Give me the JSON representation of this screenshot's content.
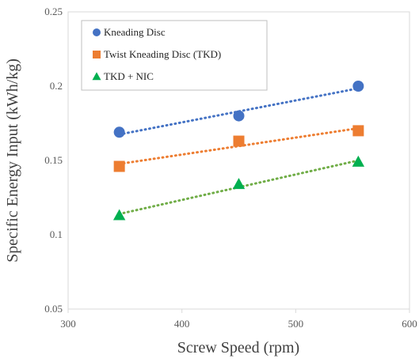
{
  "chart_data": {
    "type": "scatter",
    "title": "",
    "xlabel": "Screw Speed (rpm)",
    "ylabel": "Specific Energy Input (kWh/kg)",
    "xlim": [
      300,
      600
    ],
    "ylim": [
      0.05,
      0.25
    ],
    "x_ticks": [
      "300",
      "400",
      "500",
      "600"
    ],
    "y_ticks": [
      "0.05",
      "0.1",
      "0.15",
      "0.2",
      "0.25"
    ],
    "grid": false,
    "legend_position": "top-left",
    "trendlines": "linear, dotted",
    "series": [
      {
        "name": "Kneading Disc",
        "marker": "circle",
        "color": "#4472C4",
        "x": [
          345,
          450,
          555
        ],
        "y": [
          0.169,
          0.18,
          0.2
        ]
      },
      {
        "name": "Twist Kneading Disc (TKD)",
        "marker": "square",
        "color": "#ED7D31",
        "x": [
          345,
          450,
          555
        ],
        "y": [
          0.146,
          0.163,
          0.17
        ]
      },
      {
        "name": "TKD + NIC",
        "marker": "triangle",
        "color": "#00B050",
        "trendline_color": "#70AD47",
        "x": [
          345,
          450,
          555
        ],
        "y": [
          0.113,
          0.134,
          0.149
        ]
      }
    ]
  }
}
